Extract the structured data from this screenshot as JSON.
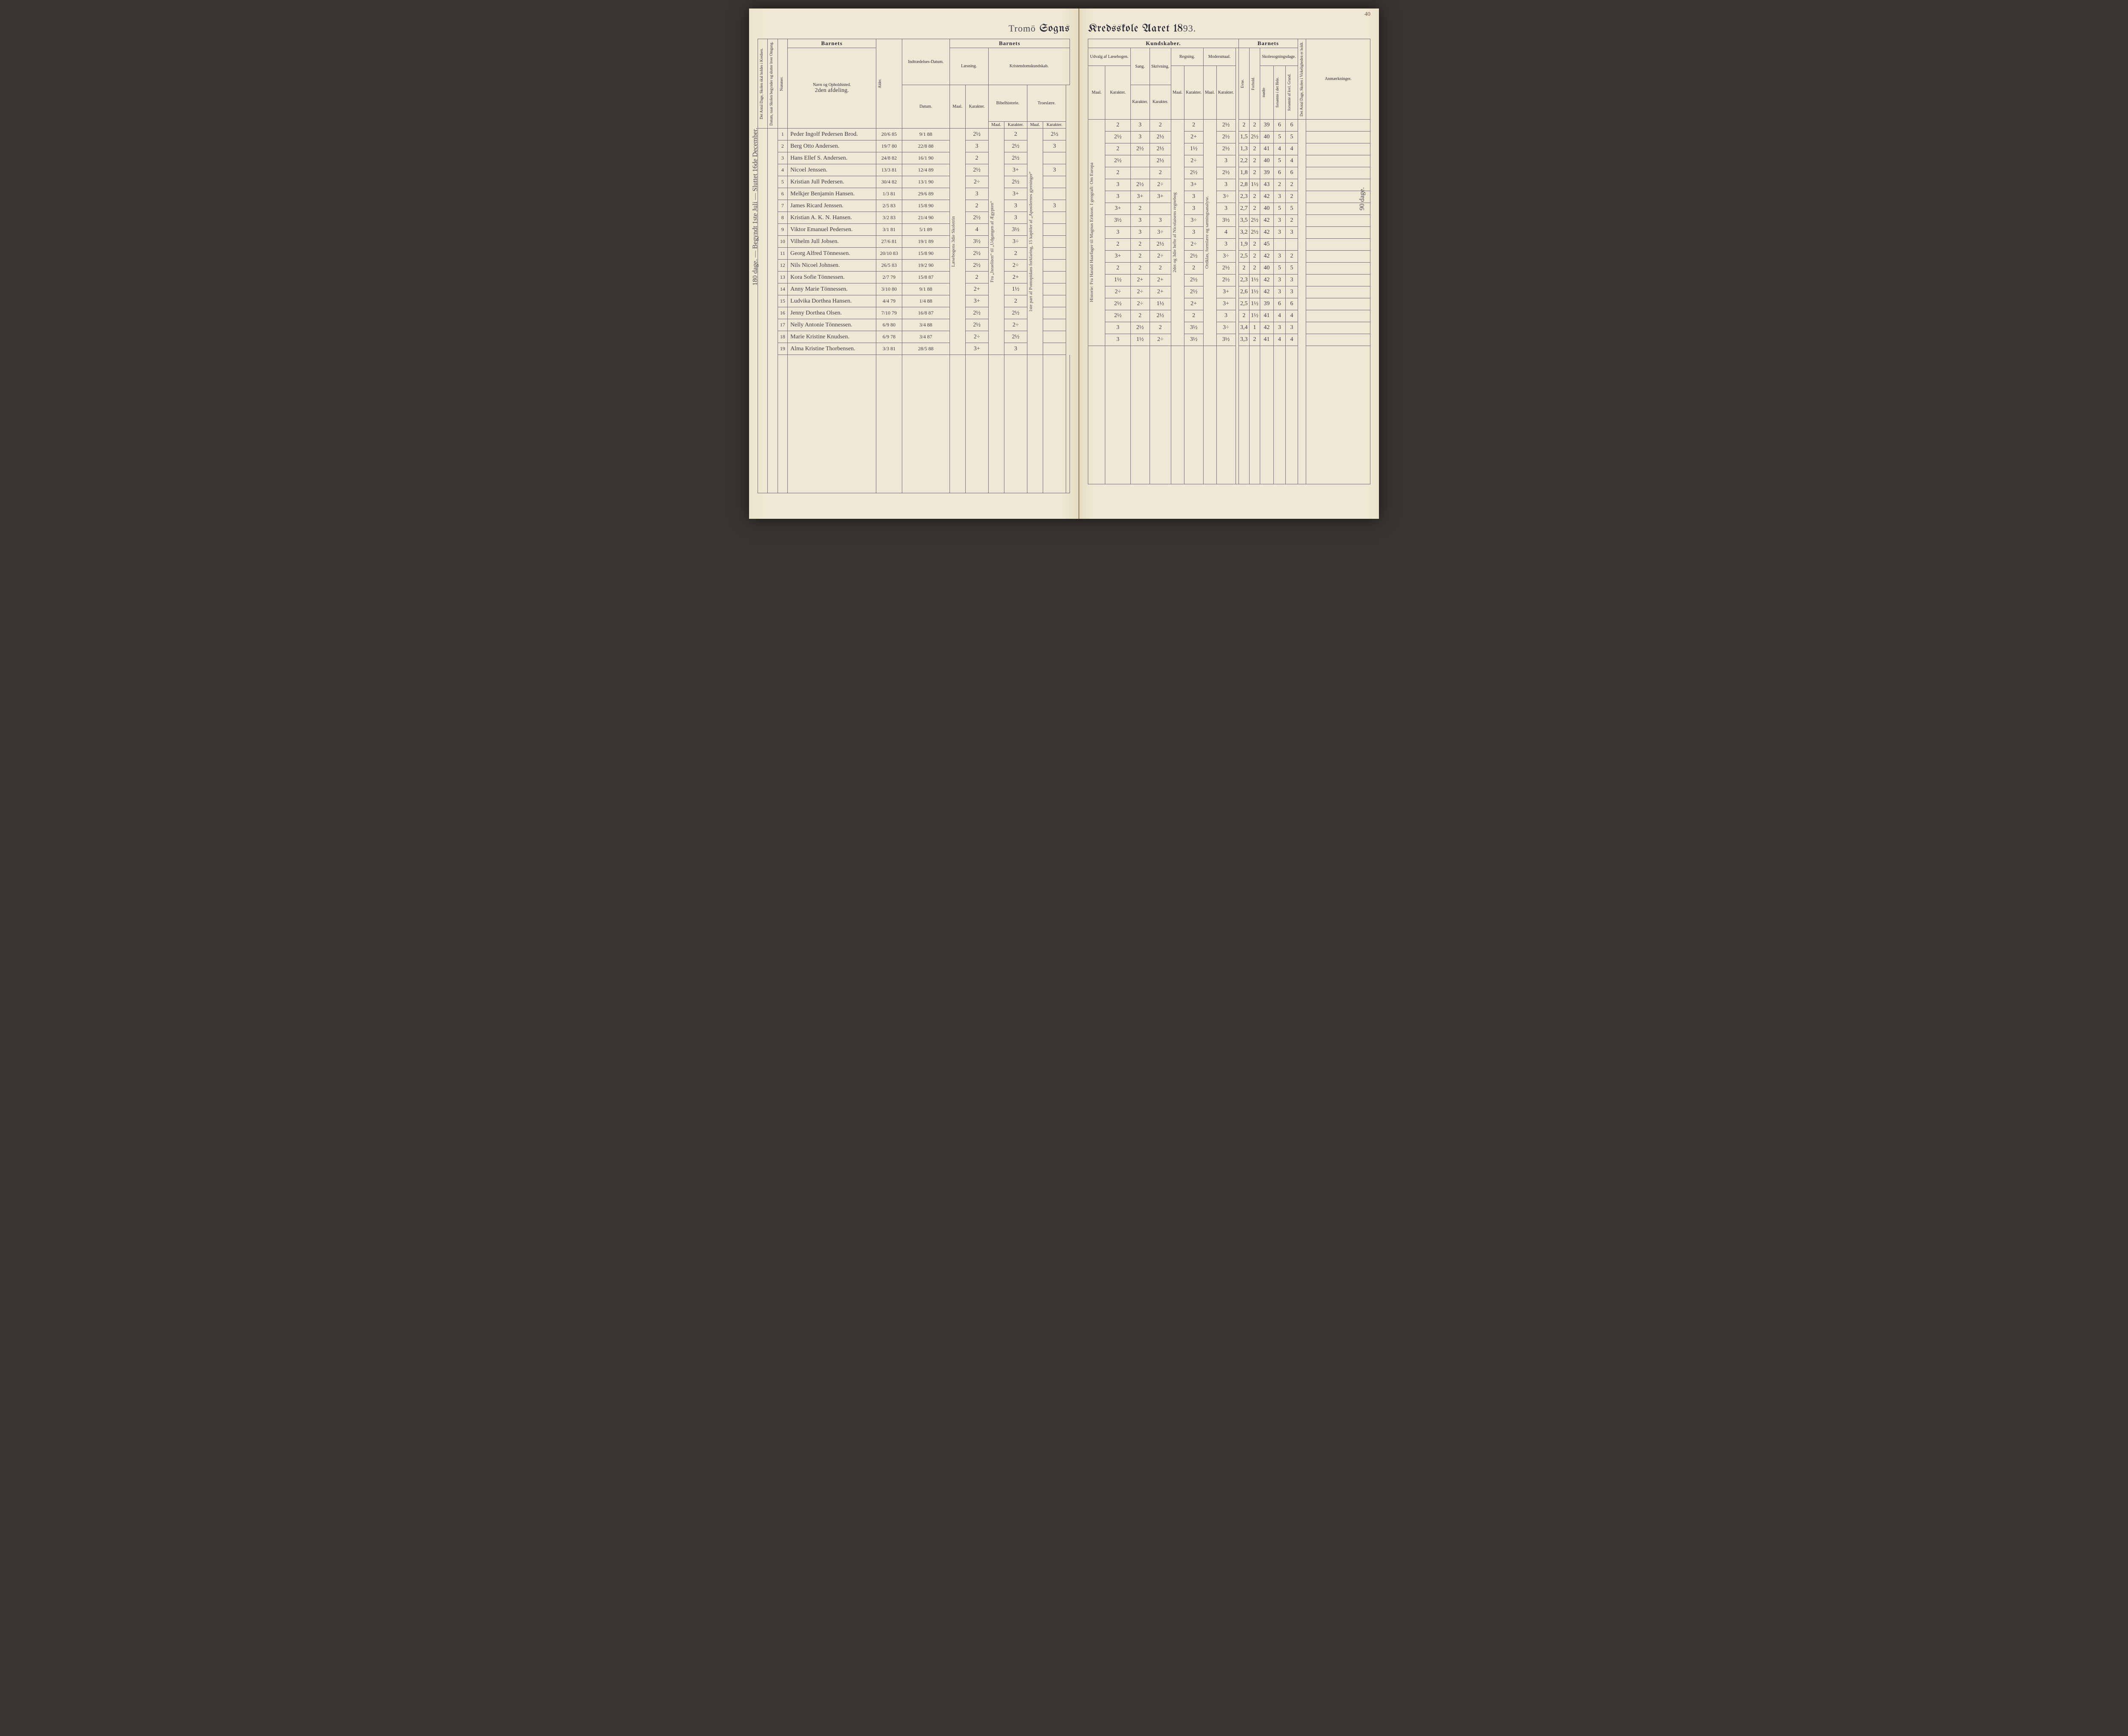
{
  "header": {
    "left_title_script": "Tromö",
    "left_title_print": "Sogns",
    "right_title_print": "Kredsskole Aaret 18",
    "right_title_script": "93.",
    "page_number": "40"
  },
  "margin_notes": {
    "left": "180 dage. — Begyndt 1ste Juli — Sluttet 16de December.",
    "right": "90 dage."
  },
  "left_headers": {
    "col_a": "Det Antal Dage, Skolen skal holdes i Kredsen.",
    "col_b": "Datum, naar Skolen begynder og slutter hver Omgang.",
    "nummer": "Nummer.",
    "barnets": "Barnets",
    "navn": "Navn og Opholdssted.",
    "navn_sub": "2den afdeling.",
    "alder": "Alder.",
    "indtraed": "Indtrædelses-Datum.",
    "barnets2": "Barnets",
    "laesning": "Læsning.",
    "kristendom": "Kristendomskundskab.",
    "maal": "Maal.",
    "karakter": "Karakter.",
    "bibel": "Bibelhistorie.",
    "troes": "Troeslære."
  },
  "right_headers": {
    "kundskaber": "Kundskaber.",
    "udvalg": "Udvalg af Læsebogen.",
    "sang": "Sang.",
    "skrivning": "Skrivning.",
    "regning": "Regning.",
    "modersmaal": "Modersmaal.",
    "barnets": "Barnets",
    "evne": "Evne.",
    "forhold": "Forhold.",
    "skolesogn": "Skolesogningsdage.",
    "modte": "mødte",
    "forsomte_hele": "forsømte i det Hele.",
    "forsomte_lovl": "forsømte af lovl. Grund.",
    "antal_dage": "Det Antal Dage, Skolen i Virkeligheden er holdt.",
    "anm": "Anmærkninger.",
    "maal": "Maal.",
    "karakter": "Karakter."
  },
  "column_notes": {
    "laesning_maal": "Læsebogens 3die Skoletrin",
    "bibel_maal": "Fra „Israeliten“ til „Udgangen af Ægypten“",
    "troes_maal": "1ste part af Pontopidans forklaring, 15 kapitler af „Apostlernes gjerninger“",
    "udvalg_maal": "Historie: Fra Harald Haarfager til Magnus Erikson. I geografi: Om Europa",
    "regning_maal": "2det og 3die hefte af Nicolaisens regnebog",
    "modersmaal_maal": "Ordklas, formlære og sætningsanalyse."
  },
  "rows": [
    {
      "n": "1",
      "name": "Peder Ingolf Pedersen Brod.",
      "alder": "20/6 85",
      "ind": "9/1 88",
      "laes_k": "2½",
      "bib_k": "2",
      "tro_k": "2½",
      "udv_k": "2",
      "sang": "3",
      "skr": "2",
      "reg_k": "2",
      "mod_k": "2½",
      "evne": "2",
      "for": "2",
      "modte": "39",
      "f1": "6",
      "f2": "6"
    },
    {
      "n": "2",
      "name": "Berg Otto Andersen.",
      "alder": "19/7 80",
      "ind": "22/8 88",
      "laes_k": "3",
      "bib_k": "2½",
      "tro_k": "3",
      "udv_k": "2½",
      "sang": "3",
      "skr": "2½",
      "reg_k": "2+",
      "mod_k": "2½",
      "evne": "1,5",
      "for": "2½",
      "modte": "40",
      "f1": "5",
      "f2": "5"
    },
    {
      "n": "3",
      "name": "Hans Ellef S. Andersen.",
      "alder": "24/8 82",
      "ind": "16/1 90",
      "laes_k": "2",
      "bib_k": "2½",
      "tro_k": "",
      "udv_k": "2",
      "sang": "2½",
      "skr": "2½",
      "reg_k": "1½",
      "mod_k": "2½",
      "evne": "1,3",
      "for": "2",
      "modte": "41",
      "f1": "4",
      "f2": "4"
    },
    {
      "n": "4",
      "name": "Nicoel Jenssen.",
      "alder": "13/3 81",
      "ind": "12/4 89",
      "laes_k": "2½",
      "bib_k": "3+",
      "tro_k": "3",
      "udv_k": "2½",
      "sang": "",
      "skr": "2½",
      "reg_k": "2÷",
      "mod_k": "3",
      "evne": "2,2",
      "for": "2",
      "modte": "40",
      "f1": "5",
      "f2": "4"
    },
    {
      "n": "5",
      "name": "Kristian Jull Pedersen.",
      "alder": "30/4 82",
      "ind": "13/1 90",
      "laes_k": "2÷",
      "bib_k": "2½",
      "tro_k": "",
      "udv_k": "2",
      "sang": "",
      "skr": "2",
      "reg_k": "2½",
      "mod_k": "2½",
      "evne": "1,8",
      "for": "2",
      "modte": "39",
      "f1": "6",
      "f2": "6"
    },
    {
      "n": "6",
      "name": "Melkjer Benjamin Hansen.",
      "alder": "1/3 81",
      "ind": "29/6 89",
      "laes_k": "3",
      "bib_k": "3+",
      "tro_k": "",
      "udv_k": "3",
      "sang": "2½",
      "skr": "2÷",
      "reg_k": "3+",
      "mod_k": "3",
      "evne": "2,8",
      "for": "1½",
      "modte": "43",
      "f1": "2",
      "f2": "2"
    },
    {
      "n": "7",
      "name": "James Ricard Jenssen.",
      "alder": "2/5 83",
      "ind": "15/8 90",
      "laes_k": "2",
      "bib_k": "3",
      "tro_k": "3",
      "udv_k": "3",
      "sang": "3+",
      "skr": "3+",
      "reg_k": "3",
      "mod_k": "3÷",
      "evne": "2,3",
      "for": "2",
      "modte": "42",
      "f1": "3",
      "f2": "2"
    },
    {
      "n": "8",
      "name": "Kristian A. K. N. Hansen.",
      "alder": "3/2 83",
      "ind": "21/4 90",
      "laes_k": "2½",
      "bib_k": "3",
      "tro_k": "",
      "udv_k": "3+",
      "sang": "2",
      "skr": "",
      "reg_k": "3",
      "mod_k": "3",
      "evne": "2,7",
      "for": "2",
      "modte": "40",
      "f1": "5",
      "f2": "5"
    },
    {
      "n": "9",
      "name": "Viktor Emanuel Pedersen.",
      "alder": "3/1 81",
      "ind": "5/1 89",
      "laes_k": "4",
      "bib_k": "3½",
      "tro_k": "",
      "udv_k": "3½",
      "sang": "3",
      "skr": "3",
      "reg_k": "3÷",
      "mod_k": "3½",
      "evne": "3,5",
      "for": "2½",
      "modte": "42",
      "f1": "3",
      "f2": "2"
    },
    {
      "n": "10",
      "name": "Vilhelm Jull Jobsen.",
      "alder": "27/6 81",
      "ind": "19/1 89",
      "laes_k": "3½",
      "bib_k": "3÷",
      "tro_k": "",
      "udv_k": "3",
      "sang": "3",
      "skr": "3÷",
      "reg_k": "3",
      "mod_k": "4",
      "evne": "3,2",
      "for": "2½",
      "modte": "42",
      "f1": "3",
      "f2": "3"
    },
    {
      "n": "11",
      "name": "Georg Alfred Tönnessen.",
      "alder": "20/10 83",
      "ind": "15/8 90",
      "laes_k": "2½",
      "bib_k": "2",
      "tro_k": "",
      "udv_k": "2",
      "sang": "2",
      "skr": "2½",
      "reg_k": "2÷",
      "mod_k": "3",
      "evne": "1,9",
      "for": "2",
      "modte": "45",
      "f1": "",
      "f2": ""
    },
    {
      "n": "12",
      "name": "Nils Nicoel Johnsen.",
      "alder": "26/5 83",
      "ind": "19/2 90",
      "laes_k": "2½",
      "bib_k": "2÷",
      "tro_k": "",
      "udv_k": "3+",
      "sang": "2",
      "skr": "2÷",
      "reg_k": "2½",
      "mod_k": "3÷",
      "evne": "2,5",
      "for": "2",
      "modte": "42",
      "f1": "3",
      "f2": "2"
    },
    {
      "n": "13",
      "name": "Kora Sofie Tönnessen.",
      "alder": "2/7 79",
      "ind": "15/8 87",
      "laes_k": "2",
      "bib_k": "2+",
      "tro_k": "",
      "udv_k": "2",
      "sang": "2",
      "skr": "2",
      "reg_k": "2",
      "mod_k": "2½",
      "evne": "2",
      "for": "2",
      "modte": "40",
      "f1": "5",
      "f2": "5"
    },
    {
      "n": "14",
      "name": "Anny Marie Tönnessen.",
      "alder": "3/10 80",
      "ind": "9/1 88",
      "laes_k": "2+",
      "bib_k": "1½",
      "tro_k": "",
      "udv_k": "1½",
      "sang": "2+",
      "skr": "2+",
      "reg_k": "2½",
      "mod_k": "2½",
      "evne": "2,3",
      "for": "1½",
      "modte": "42",
      "f1": "3",
      "f2": "3"
    },
    {
      "n": "15",
      "name": "Ludvika Dorthea Hansen.",
      "alder": "4/4 79",
      "ind": "1/4 88",
      "laes_k": "3+",
      "bib_k": "2",
      "tro_k": "",
      "udv_k": "2÷",
      "sang": "2÷",
      "skr": "2+",
      "reg_k": "2½",
      "mod_k": "3+",
      "evne": "2,6",
      "for": "1½",
      "modte": "42",
      "f1": "3",
      "f2": "3"
    },
    {
      "n": "16",
      "name": "Jenny Dorthea Olsen.",
      "alder": "7/10 79",
      "ind": "16/8 87",
      "laes_k": "2½",
      "bib_k": "2½",
      "tro_k": "",
      "udv_k": "2½",
      "sang": "2÷",
      "skr": "1½",
      "reg_k": "2+",
      "mod_k": "3+",
      "evne": "2,5",
      "for": "1½",
      "modte": "39",
      "f1": "6",
      "f2": "6"
    },
    {
      "n": "17",
      "name": "Nelly Antonie Tönnessen.",
      "alder": "6/9 80",
      "ind": "3/4 88",
      "laes_k": "2½",
      "bib_k": "2÷",
      "tro_k": "",
      "udv_k": "2½",
      "sang": "2",
      "skr": "2½",
      "reg_k": "2",
      "mod_k": "3",
      "evne": "2",
      "for": "1½",
      "modte": "41",
      "f1": "4",
      "f2": "4"
    },
    {
      "n": "18",
      "name": "Marie Kristine Knudsen.",
      "alder": "6/9 78",
      "ind": "3/4 87",
      "laes_k": "2÷",
      "bib_k": "2½",
      "tro_k": "",
      "udv_k": "3",
      "sang": "2½",
      "skr": "2",
      "reg_k": "3½",
      "mod_k": "3÷",
      "evne": "3,4",
      "for": "1",
      "modte": "42",
      "f1": "3",
      "f2": "3"
    },
    {
      "n": "19",
      "name": "Alma Kristine Thorbensen.",
      "alder": "3/3 81",
      "ind": "28/5 88",
      "laes_k": "3+",
      "bib_k": "3",
      "tro_k": "",
      "udv_k": "3",
      "sang": "1½",
      "skr": "2÷",
      "reg_k": "3½",
      "mod_k": "3½",
      "evne": "3,3",
      "for": "2",
      "modte": "41",
      "f1": "4",
      "f2": "4"
    }
  ]
}
